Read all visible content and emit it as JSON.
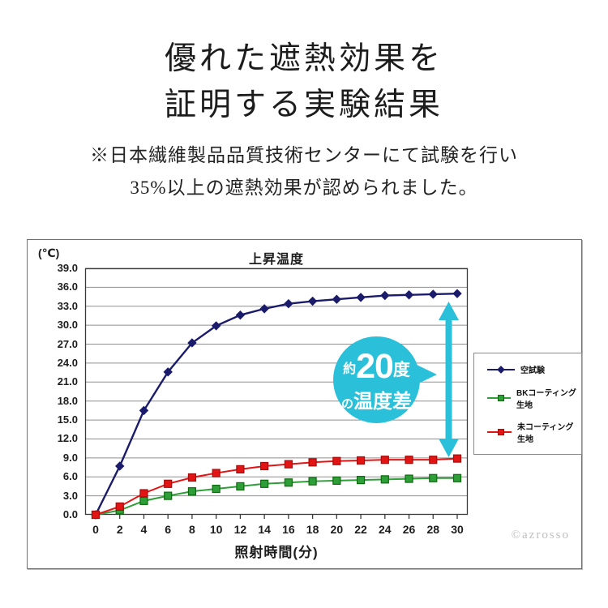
{
  "page": {
    "title_line1": "優れた遮熱効果を",
    "title_line2": "証明する実験結果",
    "subtitle_line1": "※日本繊維製品品質技術センターにて試験を行い",
    "subtitle_line2": "35%以上の遮熱効果が認められました。",
    "watermark": "©azrosso"
  },
  "chart_data": {
    "type": "line",
    "title": "上昇温度",
    "unit_label": "(℃)",
    "xlabel": "照射時間(分)",
    "x": [
      0,
      2,
      4,
      6,
      8,
      10,
      12,
      14,
      16,
      18,
      20,
      22,
      24,
      26,
      28,
      30
    ],
    "ylim": [
      0,
      39
    ],
    "ytick_step": 3,
    "yticks": [
      "0.0",
      "3.0",
      "6.0",
      "9.0",
      "12.0",
      "15.0",
      "18.0",
      "21.0",
      "24.0",
      "27.0",
      "30.0",
      "33.0",
      "36.0",
      "39.0"
    ],
    "grid": true,
    "legend_position": "right",
    "series": [
      {
        "name": "空試験",
        "marker": "diamond",
        "color": "#1b1b6b",
        "edge": "#1b1b6b",
        "values": [
          0.0,
          7.7,
          16.5,
          22.6,
          27.2,
          29.9,
          31.6,
          32.6,
          33.4,
          33.8,
          34.1,
          34.4,
          34.7,
          34.8,
          34.9,
          35.0
        ]
      },
      {
        "name": "BKコーティング生地",
        "marker": "square",
        "color": "#2e9e38",
        "edge": "#0d6b0d",
        "values": [
          0.0,
          0.7,
          2.2,
          3.0,
          3.7,
          4.1,
          4.5,
          4.9,
          5.1,
          5.3,
          5.4,
          5.5,
          5.6,
          5.7,
          5.8,
          5.8
        ]
      },
      {
        "name": "未コーティング生地",
        "marker": "square",
        "color": "#e21414",
        "edge": "#a50d0d",
        "values": [
          0.0,
          1.3,
          3.4,
          4.9,
          5.9,
          6.6,
          7.2,
          7.7,
          8.0,
          8.3,
          8.5,
          8.6,
          8.7,
          8.7,
          8.7,
          8.9
        ]
      }
    ],
    "annotation_arrow": {
      "from_value": 35.0,
      "to_value": 9.0,
      "at_x": 30
    }
  },
  "annotation": {
    "approx": "約",
    "value": "20",
    "unit": "度",
    "particle": "の",
    "label": "温度差",
    "color": "#2ac0da"
  },
  "colors": {
    "grid": "#8f8f8f",
    "plot_border": "#3a3a3a",
    "text": "#1d1d1d"
  }
}
